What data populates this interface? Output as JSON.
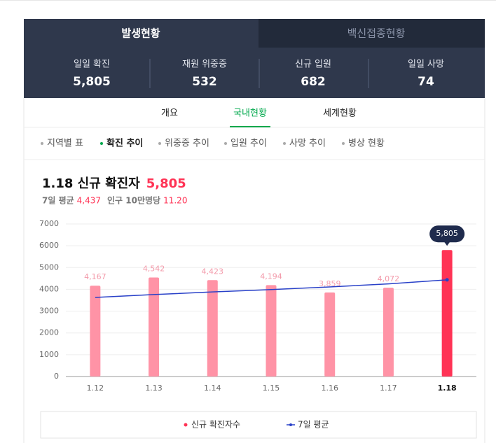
{
  "tabs": [
    "발생현황",
    "백신접종현황"
  ],
  "stats": [
    {
      "label": "일일 확진",
      "value": "5,805"
    },
    {
      "label": "재원 위중증",
      "value": "532"
    },
    {
      "label": "신규 입원",
      "value": "682"
    },
    {
      "label": "일일 사망",
      "value": "74"
    }
  ],
  "nav": [
    "개요",
    "국내현황",
    "세계현황"
  ],
  "subnav": [
    "지역별 표",
    "확진 추이",
    "위중증 추이",
    "입원 추이",
    "사망 추이",
    "병상 현황"
  ],
  "chart_data": {
    "type": "bar",
    "title": "1.18 신규 확진자",
    "title_value": "5,805",
    "summary": [
      {
        "label": "7일 평균",
        "value": "4,437"
      },
      {
        "label": "인구 10만명당",
        "value": "11.20"
      }
    ],
    "categories": [
      "1.12",
      "1.13",
      "1.14",
      "1.15",
      "1.16",
      "1.17",
      "1.18"
    ],
    "series": [
      {
        "name": "신규 확진자수",
        "type": "bar",
        "color": "#ff3355",
        "colors": [
          "#ff93a6",
          "#ff93a6",
          "#ff93a6",
          "#ff93a6",
          "#ff93a6",
          "#ff93a6",
          "#ff3355"
        ],
        "values": [
          4167,
          4542,
          4423,
          4194,
          3859,
          4072,
          5805
        ],
        "value_labels": [
          "4,167",
          "4,542",
          "4,423",
          "4,194",
          "3,859",
          "4,072",
          "5,805"
        ]
      },
      {
        "name": "7일 평균",
        "type": "line",
        "color": "#2840c8",
        "values": [
          3628,
          3760,
          3880,
          3990,
          4110,
          4250,
          4437
        ]
      }
    ],
    "ylim": [
      0,
      7000
    ],
    "yticks": [
      0,
      1000,
      2000,
      3000,
      4000,
      5000,
      6000,
      7000
    ],
    "grid": true,
    "legend": "bottom"
  }
}
